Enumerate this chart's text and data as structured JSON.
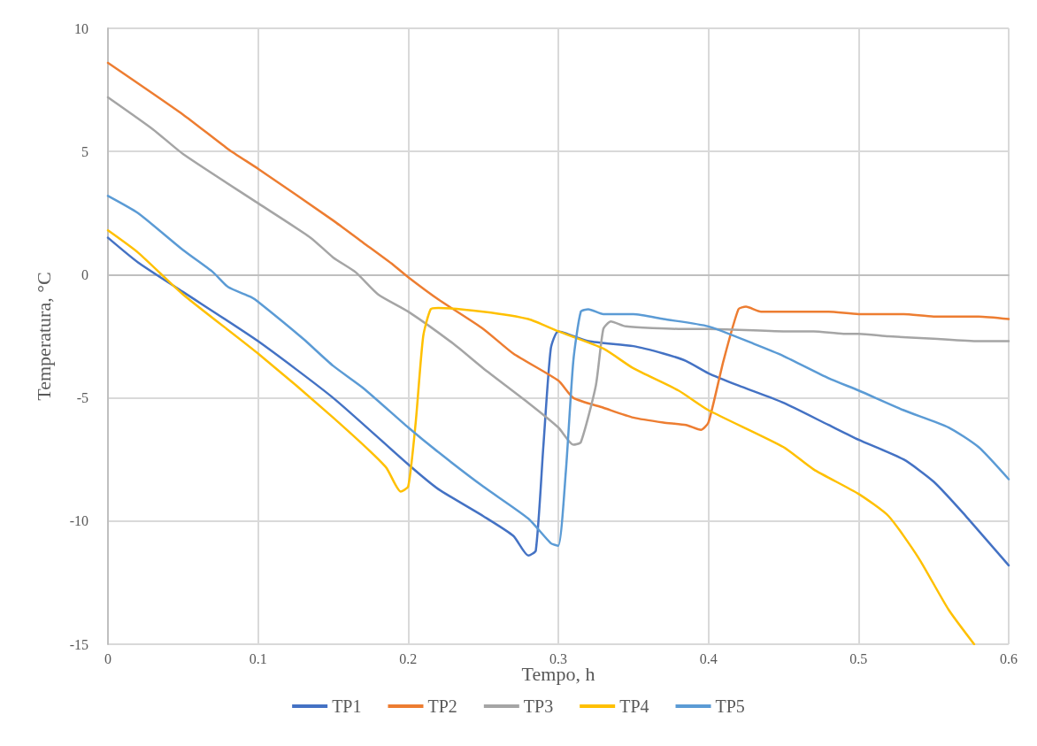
{
  "chart_data": {
    "type": "line",
    "xlabel": "Tempo, h",
    "ylabel": "Temperatura, °C",
    "xlim": [
      0,
      0.6
    ],
    "xticks": [
      0,
      0.1,
      0.2,
      0.3,
      0.4,
      0.5,
      0.6
    ],
    "ylim": [
      -15,
      10
    ],
    "yticks": [
      -15,
      -10,
      -5,
      0,
      5,
      10
    ],
    "grid": true,
    "legend": "bottom",
    "marker": "none",
    "line_style": "solid",
    "series": [
      {
        "name": "TP1",
        "color": "#4472c4",
        "x": [
          0,
          0.02,
          0.05,
          0.1,
          0.15,
          0.2,
          0.22,
          0.25,
          0.27,
          0.28,
          0.285,
          0.29,
          0.295,
          0.3,
          0.32,
          0.35,
          0.37,
          0.385,
          0.4,
          0.42,
          0.45,
          0.48,
          0.5,
          0.53,
          0.55,
          0.57,
          0.6
        ],
        "values": [
          1.5,
          0.5,
          -0.7,
          -2.7,
          -5.0,
          -7.7,
          -8.7,
          -9.8,
          -10.6,
          -11.4,
          -11.2,
          -7,
          -3,
          -2.3,
          -2.7,
          -2.9,
          -3.2,
          -3.5,
          -4.0,
          -4.5,
          -5.2,
          -6.1,
          -6.7,
          -7.5,
          -8.4,
          -9.7,
          -11.8
        ]
      },
      {
        "name": "TP2",
        "color": "#ed7d31",
        "x": [
          0,
          0.05,
          0.08,
          0.1,
          0.15,
          0.17,
          0.19,
          0.2,
          0.22,
          0.25,
          0.27,
          0.3,
          0.31,
          0.33,
          0.35,
          0.37,
          0.385,
          0.395,
          0.4,
          0.41,
          0.42,
          0.425,
          0.435,
          0.47,
          0.48,
          0.5,
          0.53,
          0.55,
          0.58,
          0.6
        ],
        "values": [
          8.6,
          6.5,
          5.1,
          4.3,
          2.2,
          1.3,
          0.4,
          -0.1,
          -1.0,
          -2.2,
          -3.2,
          -4.3,
          -5.0,
          -5.4,
          -5.8,
          -6.0,
          -6.1,
          -6.3,
          -6.0,
          -3.5,
          -1.4,
          -1.3,
          -1.5,
          -1.5,
          -1.5,
          -1.6,
          -1.6,
          -1.7,
          -1.7,
          -1.8
        ]
      },
      {
        "name": "TP3",
        "color": "#a5a5a5",
        "x": [
          0,
          0.03,
          0.05,
          0.1,
          0.135,
          0.15,
          0.165,
          0.18,
          0.2,
          0.23,
          0.25,
          0.28,
          0.3,
          0.31,
          0.315,
          0.325,
          0.33,
          0.335,
          0.345,
          0.38,
          0.4,
          0.45,
          0.47,
          0.49,
          0.5,
          0.52,
          0.55,
          0.58,
          0.6
        ],
        "values": [
          7.2,
          5.9,
          4.9,
          2.9,
          1.5,
          0.7,
          0.1,
          -0.8,
          -1.5,
          -2.8,
          -3.8,
          -5.2,
          -6.2,
          -6.9,
          -6.8,
          -4.5,
          -2.2,
          -1.9,
          -2.1,
          -2.2,
          -2.2,
          -2.3,
          -2.3,
          -2.4,
          -2.4,
          -2.5,
          -2.6,
          -2.7,
          -2.7
        ]
      },
      {
        "name": "TP4",
        "color": "#ffc000",
        "x": [
          0,
          0.02,
          0.05,
          0.1,
          0.15,
          0.185,
          0.195,
          0.2,
          0.205,
          0.21,
          0.215,
          0.22,
          0.25,
          0.28,
          0.3,
          0.33,
          0.35,
          0.38,
          0.4,
          0.45,
          0.47,
          0.5,
          0.52,
          0.54,
          0.56,
          0.577
        ],
        "values": [
          1.8,
          0.9,
          -0.8,
          -3.2,
          -5.8,
          -7.8,
          -8.8,
          -8.6,
          -6,
          -2.5,
          -1.4,
          -1.35,
          -1.5,
          -1.8,
          -2.3,
          -3.0,
          -3.8,
          -4.7,
          -5.5,
          -7.0,
          -7.9,
          -8.9,
          -9.8,
          -11.5,
          -13.6,
          -15
        ]
      },
      {
        "name": "TP5",
        "color": "#5b9bd5",
        "x": [
          0,
          0.02,
          0.05,
          0.07,
          0.08,
          0.095,
          0.1,
          0.13,
          0.15,
          0.17,
          0.2,
          0.22,
          0.25,
          0.28,
          0.295,
          0.3,
          0.305,
          0.31,
          0.315,
          0.32,
          0.33,
          0.35,
          0.37,
          0.4,
          0.43,
          0.45,
          0.48,
          0.5,
          0.53,
          0.56,
          0.58,
          0.6
        ],
        "values": [
          3.2,
          2.5,
          1.0,
          0.1,
          -0.5,
          -0.9,
          -1.1,
          -2.6,
          -3.7,
          -4.6,
          -6.2,
          -7.2,
          -8.6,
          -9.9,
          -10.9,
          -11.0,
          -8,
          -3.5,
          -1.5,
          -1.4,
          -1.6,
          -1.6,
          -1.8,
          -2.1,
          -2.8,
          -3.3,
          -4.2,
          -4.7,
          -5.5,
          -6.2,
          -7.0,
          -8.3
        ]
      }
    ]
  }
}
